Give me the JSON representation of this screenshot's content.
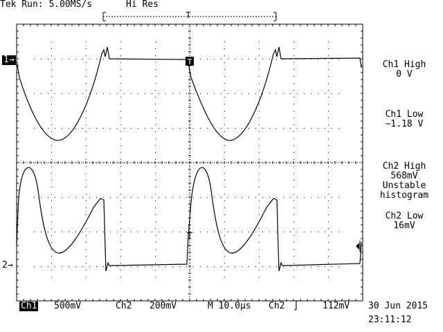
{
  "header": {
    "status": "Tek Run: 5.00MS/s",
    "mode": "Hi Res"
  },
  "markers": {
    "ch1_ref": "1→",
    "ch2_ref": "2→",
    "trigger_top": "T",
    "trigger_ch2": "T"
  },
  "measurements": [
    {
      "label": "Ch1 High",
      "value": "0 V"
    },
    {
      "label": "Ch1 Low",
      "value": "−1.18 V"
    },
    {
      "label": "Ch2 High",
      "value": "568mV",
      "note1": "Unstable",
      "note2": "histogram"
    },
    {
      "label": "Ch2 Low",
      "value": "16mV"
    }
  ],
  "footer": {
    "ch1_label": "Ch1",
    "ch1_scale": "500mV",
    "ch2_label": "Ch2",
    "ch2_scale": "200mV",
    "timebase": "M 10.0µs",
    "trig_source": "Ch2",
    "trig_slope": "∫",
    "trig_level": "112mV",
    "date": "30 Jun 2015",
    "time": "23:11:12"
  },
  "colors": {
    "background": "#ffffff",
    "trace": "#000000",
    "grid": "#000000"
  }
}
